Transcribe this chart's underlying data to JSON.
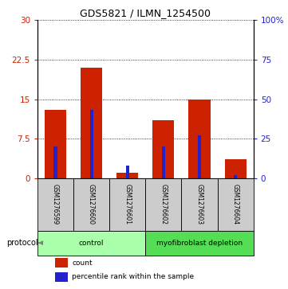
{
  "title": "GDS5821 / ILMN_1254500",
  "samples": [
    "GSM1276599",
    "GSM1276600",
    "GSM1276601",
    "GSM1276602",
    "GSM1276603",
    "GSM1276604"
  ],
  "counts": [
    13.0,
    21.0,
    1.0,
    11.0,
    15.0,
    3.5
  ],
  "percentile_ranks": [
    20.0,
    43.0,
    8.0,
    20.0,
    27.0,
    2.0
  ],
  "groups": [
    {
      "label": "control",
      "indices": [
        0,
        1,
        2
      ],
      "color": "#aaffaa"
    },
    {
      "label": "myofibroblast depletion",
      "indices": [
        3,
        4,
        5
      ],
      "color": "#55dd55"
    }
  ],
  "ylim_left": [
    0,
    30
  ],
  "ylim_right": [
    0,
    100
  ],
  "yticks_left": [
    0,
    7.5,
    15,
    22.5,
    30
  ],
  "yticks_right": [
    0,
    25,
    50,
    75,
    100
  ],
  "yticklabels_left": [
    "0",
    "7.5",
    "15",
    "22.5",
    "30"
  ],
  "yticklabels_right": [
    "0",
    "25",
    "50",
    "75",
    "100%"
  ],
  "bar_color": "#cc2200",
  "percentile_color": "#2222cc",
  "sample_box_color": "#cccccc",
  "bar_width": 0.6,
  "legend_count_label": "count",
  "legend_percentile_label": "percentile rank within the sample",
  "protocol_label": "protocol"
}
